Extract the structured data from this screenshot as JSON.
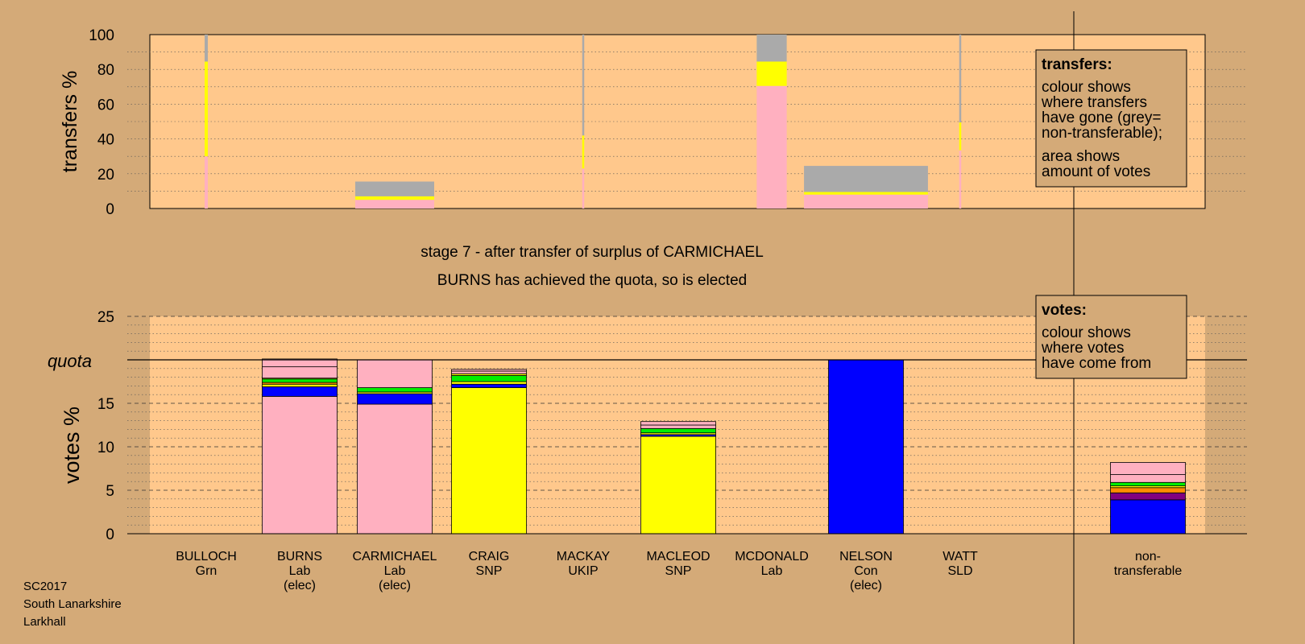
{
  "colors": {
    "page_bg": "#d4aa78",
    "plot_bg": "#ffc88c",
    "Lab": "#ffb0c0",
    "Con": "#0000ff",
    "SNP": "#ffff00",
    "Grn": "#00ee00",
    "UKIP": "#800080",
    "SLD": "#ff8c00",
    "nontransferable": "#aaaaaa"
  },
  "stage_title": "stage 7 - after transfer of surplus of CARMICHAEL",
  "stage_subtitle": "BURNS has achieved the quota, so is elected",
  "footer": [
    "SC2017",
    "South Lanarkshire",
    "Larkhall"
  ],
  "candidates": [
    {
      "name": "BULLOCH",
      "party": "Grn",
      "note": ""
    },
    {
      "name": "BURNS",
      "party": "Lab",
      "note": "(elec)"
    },
    {
      "name": "CARMICHAEL",
      "party": "Lab",
      "note": "(elec)"
    },
    {
      "name": "CRAIG",
      "party": "SNP",
      "note": ""
    },
    {
      "name": "MACKAY",
      "party": "UKIP",
      "note": ""
    },
    {
      "name": "MACLEOD",
      "party": "SNP",
      "note": ""
    },
    {
      "name": "MCDONALD",
      "party": "Lab",
      "note": ""
    },
    {
      "name": "NELSON",
      "party": "Con",
      "note": "(elec)"
    },
    {
      "name": "WATT",
      "party": "SLD",
      "note": ""
    }
  ],
  "nontransferable_label": [
    "non-",
    "transferable"
  ],
  "chart_data": [
    {
      "type": "bar",
      "name": "transfers",
      "ylabel": "transfers %",
      "ylim": [
        0,
        100
      ],
      "yticks": [
        0,
        20,
        40,
        60,
        80,
        100
      ],
      "legend_title": "transfers:",
      "legend_lines": [
        "colour shows",
        "where transfers",
        "have gone (grey=",
        "non-transferable);"
      ],
      "legend_lines2": [
        "area shows",
        "amount of votes"
      ],
      "legend_position": "top-right",
      "bars": [
        {
          "candidate": "BULLOCH",
          "width_share": 0.04,
          "segments": [
            {
              "color": "Lab",
              "value": 30
            },
            {
              "color": "SNP",
              "value": 54.5
            },
            {
              "color": "nontransferable",
              "value": 15.5
            }
          ]
        },
        {
          "candidate": "CARMICHAEL",
          "width_share": 1.0,
          "segments": [
            {
              "color": "Lab",
              "value": 5
            },
            {
              "color": "SNP",
              "value": 2
            },
            {
              "color": "nontransferable",
              "value": 8.5
            }
          ]
        },
        {
          "candidate": "MACKAY",
          "width_share": 0.02,
          "segments": [
            {
              "color": "Lab",
              "value": 23
            },
            {
              "color": "SNP",
              "value": 19
            },
            {
              "color": "nontransferable",
              "value": 58
            }
          ]
        },
        {
          "candidate": "MCDONALD",
          "width_share": 0.38,
          "segments": [
            {
              "color": "Lab",
              "value": 70.5
            },
            {
              "color": "SNP",
              "value": 14
            },
            {
              "color": "nontransferable",
              "value": 15.5
            }
          ]
        },
        {
          "candidate": "NELSON",
          "width_share": 1.57,
          "segments": [
            {
              "color": "Lab",
              "value": 8
            },
            {
              "color": "SNP",
              "value": 1.5
            },
            {
              "color": "nontransferable",
              "value": 15
            }
          ]
        },
        {
          "candidate": "WATT",
          "width_share": 0.02,
          "segments": [
            {
              "color": "Lab",
              "value": 33.5
            },
            {
              "color": "SNP",
              "value": 16
            },
            {
              "color": "nontransferable",
              "value": 50.5
            }
          ]
        }
      ]
    },
    {
      "type": "bar",
      "name": "votes",
      "ylabel": "votes %",
      "ylim": [
        0,
        25
      ],
      "yticks": [
        0,
        5,
        10,
        15,
        20,
        25
      ],
      "quota": 20,
      "quota_label": "quota",
      "legend_title": "votes:",
      "legend_lines": [
        "colour shows",
        "where votes",
        "have come from"
      ],
      "legend_position": "top-right",
      "bars": [
        {
          "candidate": "BULLOCH",
          "segments": []
        },
        {
          "candidate": "BURNS",
          "segments": [
            {
              "color": "Lab",
              "value": 15.8
            },
            {
              "color": "Con",
              "value": 1.1
            },
            {
              "color": "SNP",
              "value": 0.3
            },
            {
              "color": "SLD",
              "value": 0.2
            },
            {
              "color": "Grn",
              "value": 0.4
            },
            {
              "color": "SNP",
              "value": 0.1
            },
            {
              "color": "Lab",
              "value": 1.3
            },
            {
              "color": "Lab",
              "value": 0.9
            }
          ]
        },
        {
          "candidate": "CARMICHAEL",
          "segments": [
            {
              "color": "Lab",
              "value": 14.9
            },
            {
              "color": "Con",
              "value": 1.2
            },
            {
              "color": "SNP",
              "value": 0.2
            },
            {
              "color": "Grn",
              "value": 0.5
            },
            {
              "color": "Lab",
              "value": 3.2
            }
          ]
        },
        {
          "candidate": "CRAIG",
          "segments": [
            {
              "color": "SNP",
              "value": 16.8
            },
            {
              "color": "Con",
              "value": 0.4
            },
            {
              "color": "SNP",
              "value": 0.3
            },
            {
              "color": "Grn",
              "value": 0.7
            },
            {
              "color": "SNP",
              "value": 0.2
            },
            {
              "color": "Lab",
              "value": 0.3
            },
            {
              "color": "Lab",
              "value": 0.2
            }
          ]
        },
        {
          "candidate": "MACKAY",
          "segments": []
        },
        {
          "candidate": "MACLEOD",
          "segments": [
            {
              "color": "SNP",
              "value": 11.2
            },
            {
              "color": "Con",
              "value": 0.2
            },
            {
              "color": "SNP",
              "value": 0.2
            },
            {
              "color": "Grn",
              "value": 0.5
            },
            {
              "color": "Lab",
              "value": 0.4
            },
            {
              "color": "Lab",
              "value": 0.4
            }
          ]
        },
        {
          "candidate": "MCDONALD",
          "segments": []
        },
        {
          "candidate": "NELSON",
          "segments": [
            {
              "color": "Con",
              "value": 20
            }
          ]
        },
        {
          "candidate": "WATT",
          "segments": []
        },
        {
          "candidate": "non-transferable",
          "segments": [
            {
              "color": "Con",
              "value": 3.9
            },
            {
              "color": "UKIP",
              "value": 0.8
            },
            {
              "color": "SLD",
              "value": 0.6
            },
            {
              "color": "SNP",
              "value": 0.2
            },
            {
              "color": "Grn",
              "value": 0.4
            },
            {
              "color": "Lab",
              "value": 0.9
            },
            {
              "color": "Lab",
              "value": 1.4
            }
          ]
        }
      ]
    }
  ]
}
